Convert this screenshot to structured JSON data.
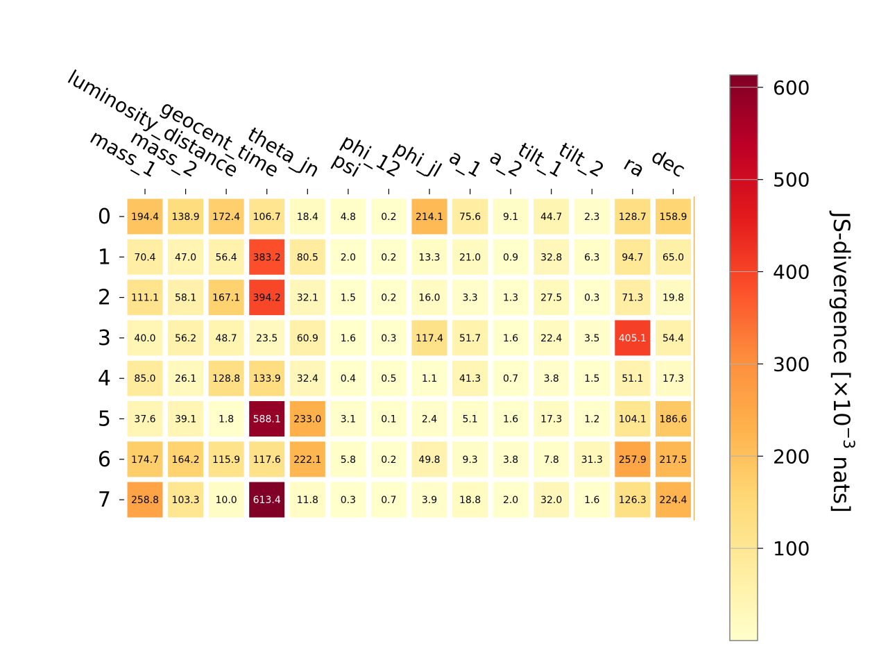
{
  "chart_data": {
    "type": "heatmap",
    "title": "",
    "x_categories": [
      "mass_1",
      "mass_2",
      "luminosity_distance",
      "geocent_time",
      "theta_jn",
      "psi",
      "phi_12",
      "phi_jl",
      "a_1",
      "a_2",
      "tilt_1",
      "tilt_2",
      "ra",
      "dec"
    ],
    "y_categories": [
      "0",
      "1",
      "2",
      "3",
      "4",
      "5",
      "6",
      "7"
    ],
    "values": [
      [
        194.4,
        138.9,
        172.4,
        106.7,
        18.4,
        4.8,
        0.2,
        214.1,
        75.6,
        9.1,
        44.7,
        2.3,
        128.7,
        158.9
      ],
      [
        70.4,
        47.0,
        56.4,
        383.2,
        80.5,
        2.0,
        0.2,
        13.3,
        21.0,
        0.9,
        32.8,
        6.3,
        94.7,
        65.0
      ],
      [
        111.1,
        58.1,
        167.1,
        394.2,
        32.1,
        1.5,
        0.2,
        16.0,
        3.3,
        1.3,
        27.5,
        0.3,
        71.3,
        19.8
      ],
      [
        40.0,
        56.2,
        48.7,
        23.5,
        60.9,
        1.6,
        0.3,
        117.4,
        51.7,
        1.6,
        22.4,
        3.5,
        405.1,
        54.4
      ],
      [
        85.0,
        26.1,
        128.8,
        133.9,
        32.4,
        0.4,
        0.5,
        1.1,
        41.3,
        0.7,
        3.8,
        1.5,
        51.1,
        17.3
      ],
      [
        37.6,
        39.1,
        1.8,
        588.1,
        233.0,
        3.1,
        0.1,
        2.4,
        5.1,
        1.6,
        17.3,
        1.2,
        104.1,
        186.6
      ],
      [
        174.7,
        164.2,
        115.9,
        117.6,
        222.1,
        5.8,
        0.2,
        49.8,
        9.3,
        3.8,
        7.8,
        31.3,
        257.9,
        217.5
      ],
      [
        258.8,
        103.3,
        10.0,
        613.4,
        11.8,
        0.3,
        0.7,
        3.9,
        18.8,
        2.0,
        32.0,
        1.6,
        126.3,
        224.4
      ]
    ],
    "value_labels": [
      [
        "194.4",
        "138.9",
        "172.4",
        "106.7",
        "18.4",
        "4.8",
        "0.2",
        "214.1",
        "75.6",
        "9.1",
        "44.7",
        "2.3",
        "128.7",
        "158.9"
      ],
      [
        "70.4",
        "47.0",
        "56.4",
        "383.2",
        "80.5",
        "2.0",
        "0.2",
        "13.3",
        "21.0",
        "0.9",
        "32.8",
        "6.3",
        "94.7",
        "65.0"
      ],
      [
        "111.1",
        "58.1",
        "167.1",
        "394.2",
        "32.1",
        "1.5",
        "0.2",
        "16.0",
        "3.3",
        "1.3",
        "27.5",
        "0.3",
        "71.3",
        "19.8"
      ],
      [
        "40.0",
        "56.2",
        "48.7",
        "23.5",
        "60.9",
        "1.6",
        "0.3",
        "117.4",
        "51.7",
        "1.6",
        "22.4",
        "3.5",
        "405.1",
        "54.4"
      ],
      [
        "85.0",
        "26.1",
        "128.8",
        "133.9",
        "32.4",
        "0.4",
        "0.5",
        "1.1",
        "41.3",
        "0.7",
        "3.8",
        "1.5",
        "51.1",
        "17.3"
      ],
      [
        "37.6",
        "39.1",
        "1.8",
        "588.1",
        "233.0",
        "3.1",
        "0.1",
        "2.4",
        "5.1",
        "1.6",
        "17.3",
        "1.2",
        "104.1",
        "186.6"
      ],
      [
        "174.7",
        "164.2",
        "115.9",
        "117.6",
        "222.1",
        "5.8",
        "0.2",
        "49.8",
        "9.3",
        "3.8",
        "7.8",
        "31.3",
        "257.9",
        "217.5"
      ],
      [
        "258.8",
        "103.3",
        "10.0",
        "613.4",
        "11.8",
        "0.3",
        "0.7",
        "3.9",
        "18.8",
        "2.0",
        "32.0",
        "1.6",
        "126.3",
        "224.4"
      ]
    ],
    "colormap": "YlOrRd",
    "colormap_stops": [
      "#ffffcc",
      "#ffeda0",
      "#fed976",
      "#feb24c",
      "#fd8d3c",
      "#fc4e2a",
      "#e31a1c",
      "#bd0026",
      "#800026"
    ],
    "color_range": [
      0,
      613.4
    ],
    "colorbar": {
      "label_main": "JS-divergence [×10",
      "label_exp": "−3",
      "label_tail": " nats]",
      "ticks": [
        100,
        200,
        300,
        400,
        500,
        600
      ],
      "tick_labels": [
        "100",
        "200",
        "300",
        "400",
        "500",
        "600"
      ]
    },
    "x_tick_position": "top",
    "grid": false
  }
}
